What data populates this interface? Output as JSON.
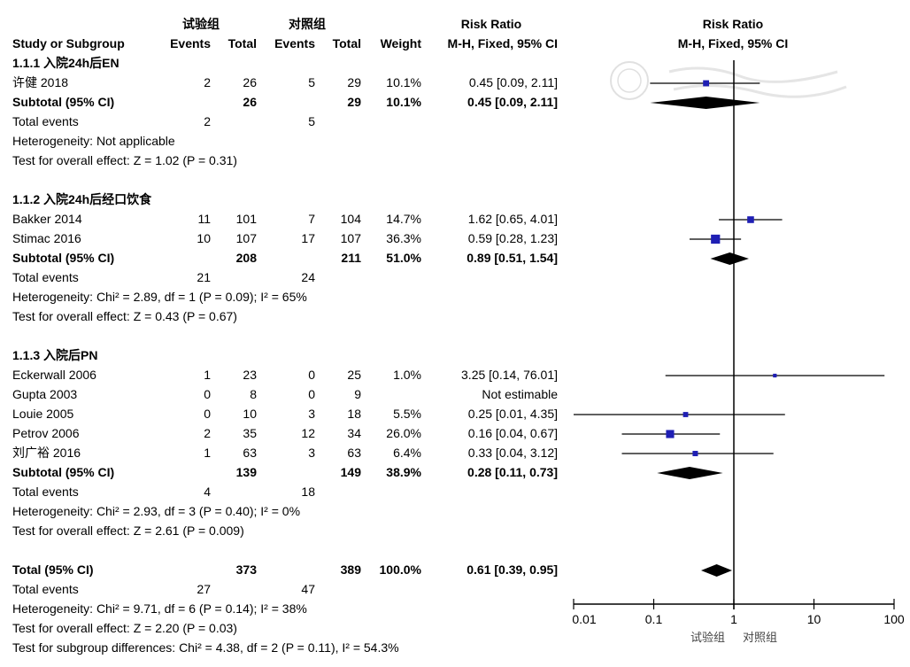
{
  "header": {
    "group_exp": "试验组",
    "group_ctrl": "对照组",
    "risk_ratio": "Risk Ratio",
    "study_col": "Study or Subgroup",
    "events": "Events",
    "total": "Total",
    "weight": "Weight",
    "method": "M-H, Fixed, 95% CI",
    "plot_title": "Risk Ratio",
    "plot_method": "M-H, Fixed, 95% CI"
  },
  "subgroups": [
    {
      "title": "1.1.1 入院24h后EN",
      "studies": [
        {
          "name": "许健 2018",
          "e1": "2",
          "n1": "26",
          "e2": "5",
          "n2": "29",
          "weight": "10.1%",
          "ci_text": "0.45 [0.09, 2.11]"
        }
      ],
      "subtotal": {
        "label": "Subtotal (95% CI)",
        "n1": "26",
        "n2": "29",
        "weight": "10.1%",
        "ci_text": "0.45 [0.09, 2.11]"
      },
      "total_events": {
        "label": "Total events",
        "e1": "2",
        "e2": "5"
      },
      "lines": [
        "Heterogeneity: Not applicable",
        "Test for overall effect: Z = 1.02 (P = 0.31)"
      ]
    },
    {
      "title": "1.1.2 入院24h后经口饮食",
      "studies": [
        {
          "name": "Bakker 2014",
          "e1": "11",
          "n1": "101",
          "e2": "7",
          "n2": "104",
          "weight": "14.7%",
          "ci_text": "1.62 [0.65, 4.01]"
        },
        {
          "name": "Stimac 2016",
          "e1": "10",
          "n1": "107",
          "e2": "17",
          "n2": "107",
          "weight": "36.3%",
          "ci_text": "0.59 [0.28, 1.23]"
        }
      ],
      "subtotal": {
        "label": "Subtotal (95% CI)",
        "n1": "208",
        "n2": "211",
        "weight": "51.0%",
        "ci_text": "0.89 [0.51, 1.54]"
      },
      "total_events": {
        "label": "Total events",
        "e1": "21",
        "e2": "24"
      },
      "lines": [
        "Heterogeneity: Chi² = 2.89, df = 1 (P = 0.09); I² = 65%",
        "Test for overall effect: Z = 0.43 (P = 0.67)"
      ]
    },
    {
      "title": "1.1.3 入院后PN",
      "studies": [
        {
          "name": "Eckerwall 2006",
          "e1": "1",
          "n1": "23",
          "e2": "0",
          "n2": "25",
          "weight": "1.0%",
          "ci_text": "3.25 [0.14, 76.01]"
        },
        {
          "name": "Gupta 2003",
          "e1": "0",
          "n1": "8",
          "e2": "0",
          "n2": "9",
          "weight": "",
          "ci_text": "Not estimable"
        },
        {
          "name": "Louie 2005",
          "e1": "0",
          "n1": "10",
          "e2": "3",
          "n2": "18",
          "weight": "5.5%",
          "ci_text": "0.25 [0.01, 4.35]"
        },
        {
          "name": "Petrov 2006",
          "e1": "2",
          "n1": "35",
          "e2": "12",
          "n2": "34",
          "weight": "26.0%",
          "ci_text": "0.16 [0.04, 0.67]"
        },
        {
          "name": "刘广裕 2016",
          "e1": "1",
          "n1": "63",
          "e2": "3",
          "n2": "63",
          "weight": "6.4%",
          "ci_text": "0.33 [0.04, 3.12]"
        }
      ],
      "subtotal": {
        "label": "Subtotal (95% CI)",
        "n1": "139",
        "n2": "149",
        "weight": "38.9%",
        "ci_text": "0.28 [0.11, 0.73]"
      },
      "total_events": {
        "label": "Total events",
        "e1": "4",
        "e2": "18"
      },
      "lines": [
        "Heterogeneity: Chi² = 2.93, df = 3 (P = 0.40); I² = 0%",
        "Test for overall effect: Z = 2.61 (P = 0.009)"
      ]
    }
  ],
  "overall": {
    "label": "Total (95% CI)",
    "n1": "373",
    "n2": "389",
    "weight": "100.0%",
    "ci_text": "0.61 [0.39, 0.95]",
    "total_events": {
      "label": "Total events",
      "e1": "27",
      "e2": "47"
    },
    "lines": [
      "Heterogeneity: Chi² = 9.71, df = 6 (P = 0.14); I² = 38%",
      "Test for overall effect: Z = 2.20 (P = 0.03)",
      "Test for subgroup differences: Chi² = 4.38, df = 2 (P = 0.11), I² = 54.3%"
    ]
  },
  "axis": {
    "ticks": [
      "0.01",
      "0.1",
      "1",
      "10",
      "100"
    ],
    "favours_left": "试验组",
    "favours_right": "对照组"
  },
  "colors": {
    "marker": "#1f1fb4",
    "diamond": "#000000",
    "line": "#000000"
  },
  "chart_data": {
    "type": "forest",
    "title": "Risk Ratio",
    "xlabel": "M-H, Fixed, 95% CI",
    "scale": "log",
    "xlim": [
      0.01,
      100
    ],
    "reference": 1,
    "studies": [
      {
        "name": "许健 2018",
        "rr": 0.45,
        "lo": 0.09,
        "hi": 2.11,
        "weight": 10.1
      },
      {
        "name": "Bakker 2014",
        "rr": 1.62,
        "lo": 0.65,
        "hi": 4.01,
        "weight": 14.7
      },
      {
        "name": "Stimac 2016",
        "rr": 0.59,
        "lo": 0.28,
        "hi": 1.23,
        "weight": 36.3
      },
      {
        "name": "Eckerwall 2006",
        "rr": 3.25,
        "lo": 0.14,
        "hi": 76.01,
        "weight": 1.0
      },
      {
        "name": "Louie 2005",
        "rr": 0.25,
        "lo": 0.01,
        "hi": 4.35,
        "weight": 5.5
      },
      {
        "name": "Petrov 2006",
        "rr": 0.16,
        "lo": 0.04,
        "hi": 0.67,
        "weight": 26.0
      },
      {
        "name": "刘广裕 2016",
        "rr": 0.33,
        "lo": 0.04,
        "hi": 3.12,
        "weight": 6.4
      }
    ],
    "subtotals": [
      {
        "name": "1.1.1 Subtotal",
        "rr": 0.45,
        "lo": 0.09,
        "hi": 2.11
      },
      {
        "name": "1.1.2 Subtotal",
        "rr": 0.89,
        "lo": 0.51,
        "hi": 1.54
      },
      {
        "name": "1.1.3 Subtotal",
        "rr": 0.28,
        "lo": 0.11,
        "hi": 0.73
      },
      {
        "name": "Total",
        "rr": 0.61,
        "lo": 0.39,
        "hi": 0.95
      }
    ]
  }
}
